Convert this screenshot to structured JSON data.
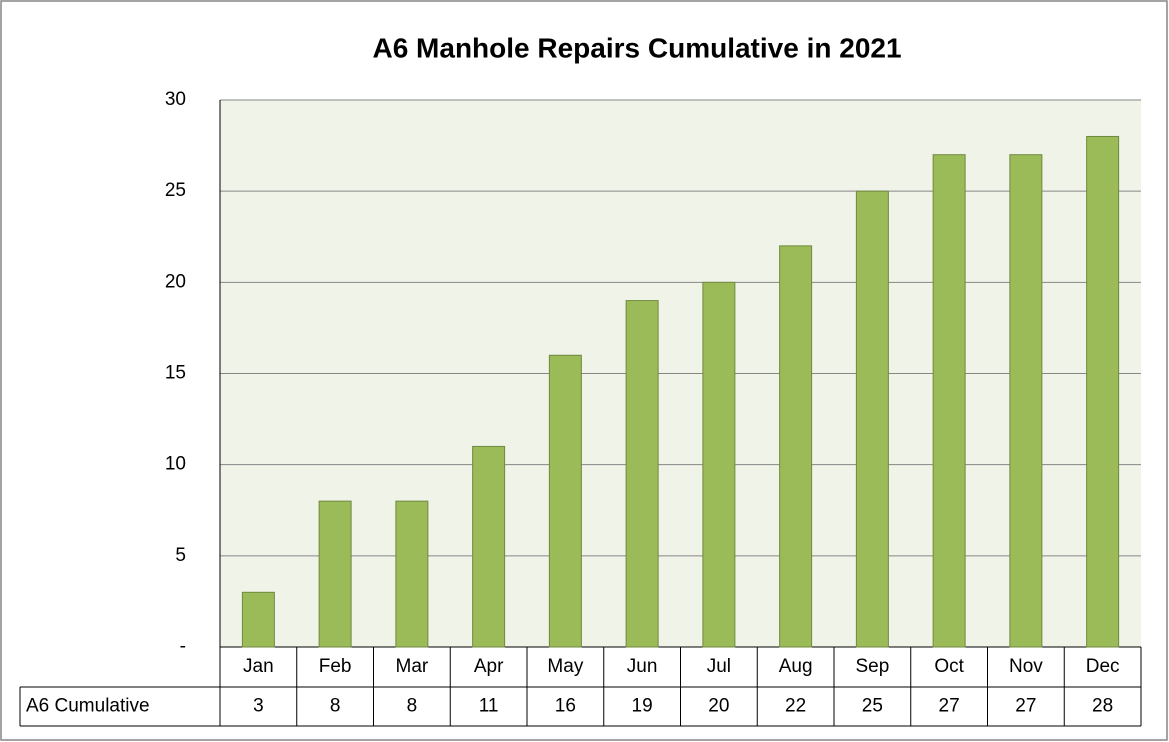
{
  "chart_data": {
    "type": "bar",
    "title": "A6 Manhole Repairs Cumulative in 2021",
    "categories": [
      "Jan",
      "Feb",
      "Mar",
      "Apr",
      "May",
      "Jun",
      "Jul",
      "Aug",
      "Sep",
      "Oct",
      "Nov",
      "Dec"
    ],
    "series": [
      {
        "name": "A6 Cumulative",
        "color": "#9bbb59",
        "values": [
          3,
          8,
          8,
          11,
          16,
          19,
          20,
          22,
          25,
          27,
          27,
          28
        ]
      }
    ],
    "ylim": [
      0,
      30
    ],
    "yticks": [
      {
        "value": 0,
        "label": "-"
      },
      5,
      10,
      15,
      20,
      25,
      30
    ],
    "grid": true
  }
}
